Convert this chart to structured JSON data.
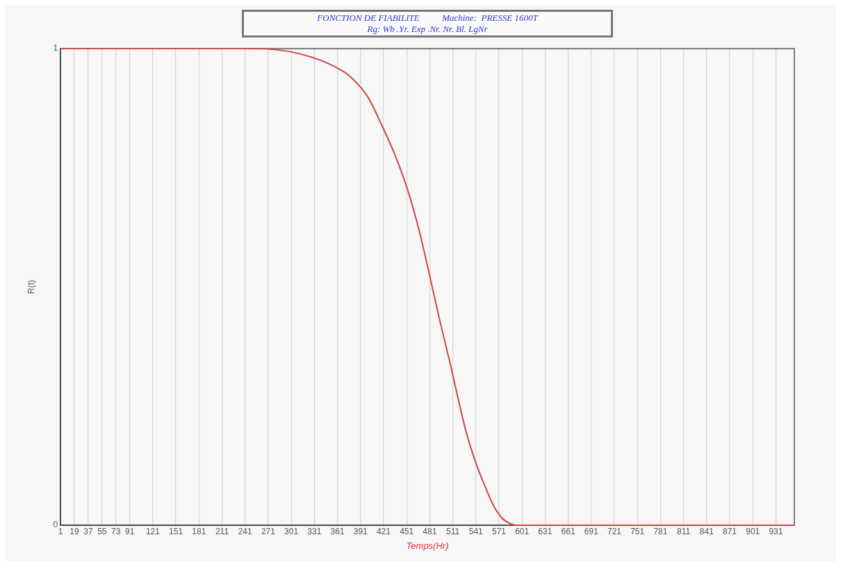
{
  "chart_data": {
    "type": "line",
    "title": "FONCTION DE FIABILITE          Machine:  PRESSE 1600T",
    "subtitle": "Rg: Wb .Yr. Exp .Nr. Nr. Bl. LgNr",
    "xlabel": "Temps(Hr)",
    "ylabel": "R(t)",
    "x": [
      1,
      250,
      280,
      310,
      340,
      360,
      375,
      400,
      419,
      435,
      452,
      467,
      481,
      494,
      507,
      518,
      529,
      540,
      551,
      564,
      575,
      585,
      593,
      955
    ],
    "series": [
      {
        "color": "#cc4444",
        "values": [
          1,
          1,
          0.998,
          0.99,
          0.975,
          0.96,
          0.945,
          0.9,
          0.838,
          0.78,
          0.705,
          0.62,
          0.523,
          0.43,
          0.343,
          0.265,
          0.192,
          0.135,
          0.089,
          0.041,
          0.015,
          0.004,
          0,
          0
        ]
      }
    ],
    "xlim": [
      1,
      955
    ],
    "xticks": [
      1,
      19,
      37,
      55,
      73,
      91,
      121,
      151,
      181,
      211,
      241,
      271,
      301,
      331,
      361,
      391,
      421,
      451,
      481,
      511,
      541,
      571,
      601,
      631,
      661,
      691,
      721,
      751,
      781,
      811,
      841,
      871,
      901,
      931
    ],
    "ylim": [
      0,
      1
    ],
    "yticks": [
      0,
      1
    ],
    "grid": "x",
    "legend": false,
    "marker": "none",
    "line_style": "solid"
  }
}
